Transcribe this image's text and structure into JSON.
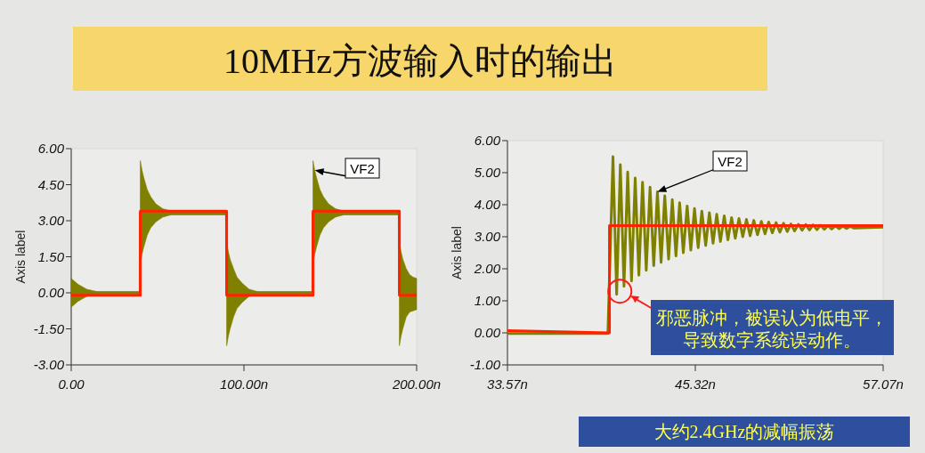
{
  "chart_data": [
    {
      "type": "line",
      "title": "10MHz方波输入时的输出",
      "ylabel": "Axis label",
      "xlim": [
        0,
        200
      ],
      "xticks": [
        {
          "value": 0,
          "label": "0.00"
        },
        {
          "value": 100,
          "label": "100.00n"
        },
        {
          "value": 200,
          "label": "200.00n"
        }
      ],
      "ylim": [
        -3,
        6
      ],
      "yticks": [
        {
          "value": -3,
          "label": "-3.00"
        },
        {
          "value": -1.5,
          "label": "-1.50"
        },
        {
          "value": 0,
          "label": "0.00"
        },
        {
          "value": 1.5,
          "label": "1.50"
        },
        {
          "value": 3,
          "label": "3.00"
        },
        {
          "value": 4.5,
          "label": "4.50"
        },
        {
          "value": 6,
          "label": "6.00"
        }
      ],
      "grid": false,
      "series": [
        {
          "color": "#ff2200",
          "x": [
            0,
            40,
            40,
            90,
            90,
            140,
            140,
            190,
            190,
            200
          ],
          "values": [
            -0.1,
            -0.1,
            3.4,
            3.4,
            -0.1,
            -0.1,
            3.4,
            3.4,
            -0.1,
            -0.1
          ]
        },
        {
          "name": "VF2",
          "color": "#808000",
          "x": [
            0,
            4,
            9,
            15,
            39.9,
            40,
            41,
            42,
            44,
            46,
            49,
            53,
            58,
            89.9,
            90,
            91,
            92,
            94,
            96,
            99,
            103,
            108,
            139.9,
            140,
            141,
            142,
            144,
            146,
            149,
            153,
            158,
            189.9,
            190,
            191,
            192,
            194,
            196,
            198,
            200
          ],
          "values": [
            0,
            0,
            0,
            0,
            0,
            3.3,
            3.3,
            3.3,
            3.3,
            3.3,
            3.3,
            3.3,
            3.3,
            3.3,
            0,
            0,
            0,
            0,
            0,
            0,
            0,
            0,
            0,
            3.3,
            3.3,
            3.3,
            3.3,
            3.3,
            3.3,
            3.3,
            3.3,
            3.3,
            0,
            0,
            0,
            0,
            0,
            0,
            0
          ],
          "upper": [
            0.6,
            0.35,
            0.15,
            0.05,
            0.05,
            5.5,
            5.1,
            4.8,
            4.3,
            4.0,
            3.7,
            3.5,
            3.4,
            3.4,
            2.1,
            1.7,
            1.4,
            1.0,
            0.65,
            0.4,
            0.15,
            0.05,
            0.05,
            5.5,
            5.1,
            4.8,
            4.3,
            4.0,
            3.7,
            3.5,
            3.4,
            3.4,
            2.1,
            1.7,
            1.4,
            1.0,
            0.75,
            0.65,
            0.6
          ],
          "lower": [
            -0.6,
            -0.35,
            -0.15,
            -0.05,
            -0.05,
            1.2,
            1.6,
            1.9,
            2.4,
            2.7,
            2.95,
            3.15,
            3.25,
            3.25,
            -2.2,
            -1.8,
            -1.5,
            -1.0,
            -0.65,
            -0.4,
            -0.15,
            -0.05,
            -0.05,
            1.2,
            1.6,
            1.9,
            2.4,
            2.7,
            2.95,
            3.15,
            3.25,
            3.25,
            -2.2,
            -1.8,
            -1.5,
            -1.0,
            -0.8,
            -0.75,
            -0.7
          ]
        }
      ]
    },
    {
      "type": "line",
      "ylabel": "Axis label",
      "xlim": [
        33.57,
        57.07
      ],
      "xticks": [
        {
          "value": 33.57,
          "label": "33.57n"
        },
        {
          "value": 45.32,
          "label": "45.32n"
        },
        {
          "value": 57.07,
          "label": "57.07n"
        }
      ],
      "ylim": [
        -1,
        6
      ],
      "yticks": [
        {
          "value": -1,
          "label": "-1.00"
        },
        {
          "value": 0,
          "label": "0.00"
        },
        {
          "value": 1,
          "label": "1.00"
        },
        {
          "value": 2,
          "label": "2.00"
        },
        {
          "value": 3,
          "label": "3.00"
        },
        {
          "value": 4,
          "label": "4.00"
        },
        {
          "value": 5,
          "label": "5.00"
        },
        {
          "value": 6,
          "label": "6.00"
        }
      ],
      "grid": false,
      "annotations": [
        {
          "text": "邪恶脉冲，被误认为低电平，导致数字系统误动作。",
          "x": 40.6,
          "y": 1.3
        },
        "大约2.4GHz的减幅振荡"
      ],
      "series": [
        {
          "color": "#ff2200",
          "x": [
            33.57,
            39.95,
            39.95,
            57.07
          ],
          "values": [
            0.07,
            0,
            3.35,
            3.35
          ]
        },
        {
          "name": "VF2",
          "color": "#808000",
          "x": [
            33.57,
            39.85,
            40.17,
            40.4,
            40.63,
            40.86,
            41.09,
            41.33,
            41.56,
            41.79,
            42.02,
            42.25,
            42.49,
            42.72,
            42.95,
            43.18,
            43.41,
            43.65,
            43.88,
            44.11,
            44.34,
            44.57,
            44.81,
            45.04,
            45.27,
            45.5,
            45.73,
            45.97,
            46.2,
            46.43,
            46.66,
            46.89,
            47.13,
            47.36,
            47.59,
            47.82,
            48.05,
            48.29,
            48.52,
            48.75,
            48.98,
            49.21,
            49.45,
            49.68,
            49.91,
            50.14,
            50.37,
            50.61,
            50.84,
            51.07,
            51.3,
            51.53,
            51.77,
            52.0,
            52.23,
            52.46,
            52.69,
            52.93,
            53.16,
            53.39,
            53.62,
            53.85,
            54.09,
            54.32,
            54.55,
            54.78,
            55.01,
            55.25,
            57.07
          ],
          "values": [
            -0.02,
            -0.02,
            5.5,
            1.2,
            5.25,
            1.45,
            5.02,
            1.62,
            4.83,
            1.8,
            4.7,
            1.95,
            4.55,
            2.1,
            4.4,
            2.2,
            4.28,
            2.3,
            4.16,
            2.4,
            4.06,
            2.5,
            3.96,
            2.58,
            3.88,
            2.66,
            3.8,
            2.73,
            3.75,
            2.8,
            3.7,
            2.85,
            3.65,
            2.9,
            3.6,
            2.95,
            3.57,
            3.0,
            3.54,
            3.03,
            3.51,
            3.06,
            3.48,
            3.09,
            3.46,
            3.12,
            3.44,
            3.14,
            3.42,
            3.16,
            3.4,
            3.18,
            3.39,
            3.2,
            3.38,
            3.21,
            3.37,
            3.22,
            3.36,
            3.23,
            3.35,
            3.24,
            3.34,
            3.25,
            3.33,
            3.26,
            3.32,
            3.27,
            3.3
          ]
        }
      ]
    }
  ]
}
